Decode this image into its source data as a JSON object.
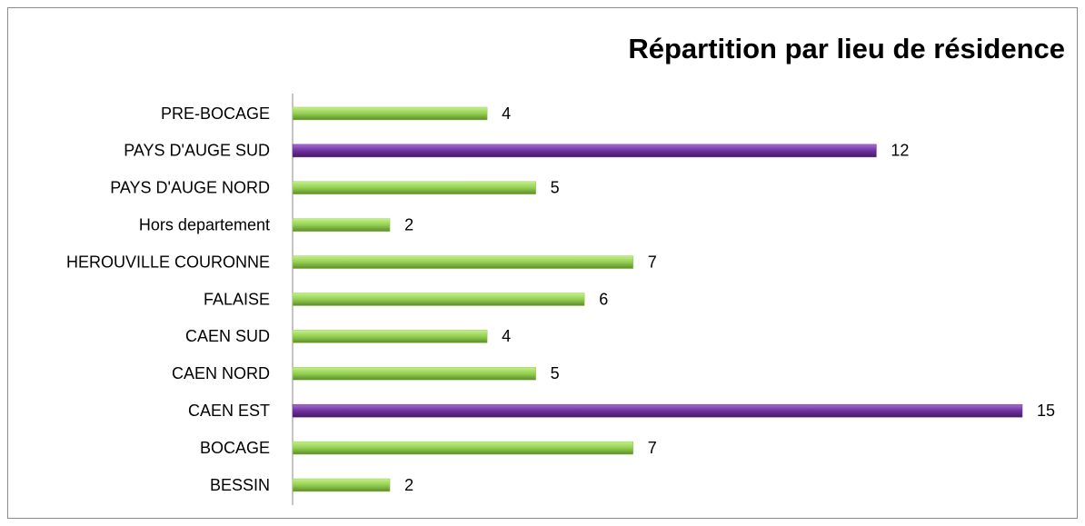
{
  "chart_data": {
    "type": "hbar",
    "title": "Répartition par lieu de résidence",
    "categories": [
      "PRE-BOCAGE",
      "PAYS D'AUGE SUD",
      "PAYS D'AUGE NORD",
      "Hors departement",
      "HEROUVILLE COURONNE",
      "FALAISE",
      "CAEN SUD",
      "CAEN NORD",
      "CAEN EST",
      "BOCAGE",
      "BESSIN"
    ],
    "values": [
      4,
      12,
      5,
      2,
      7,
      6,
      4,
      5,
      15,
      7,
      2
    ],
    "colors": [
      "#92d050",
      "#7030a0",
      "#92d050",
      "#92d050",
      "#92d050",
      "#92d050",
      "#92d050",
      "#92d050",
      "#7030a0",
      "#92d050",
      "#92d050"
    ],
    "xlim": [
      0,
      15
    ]
  }
}
